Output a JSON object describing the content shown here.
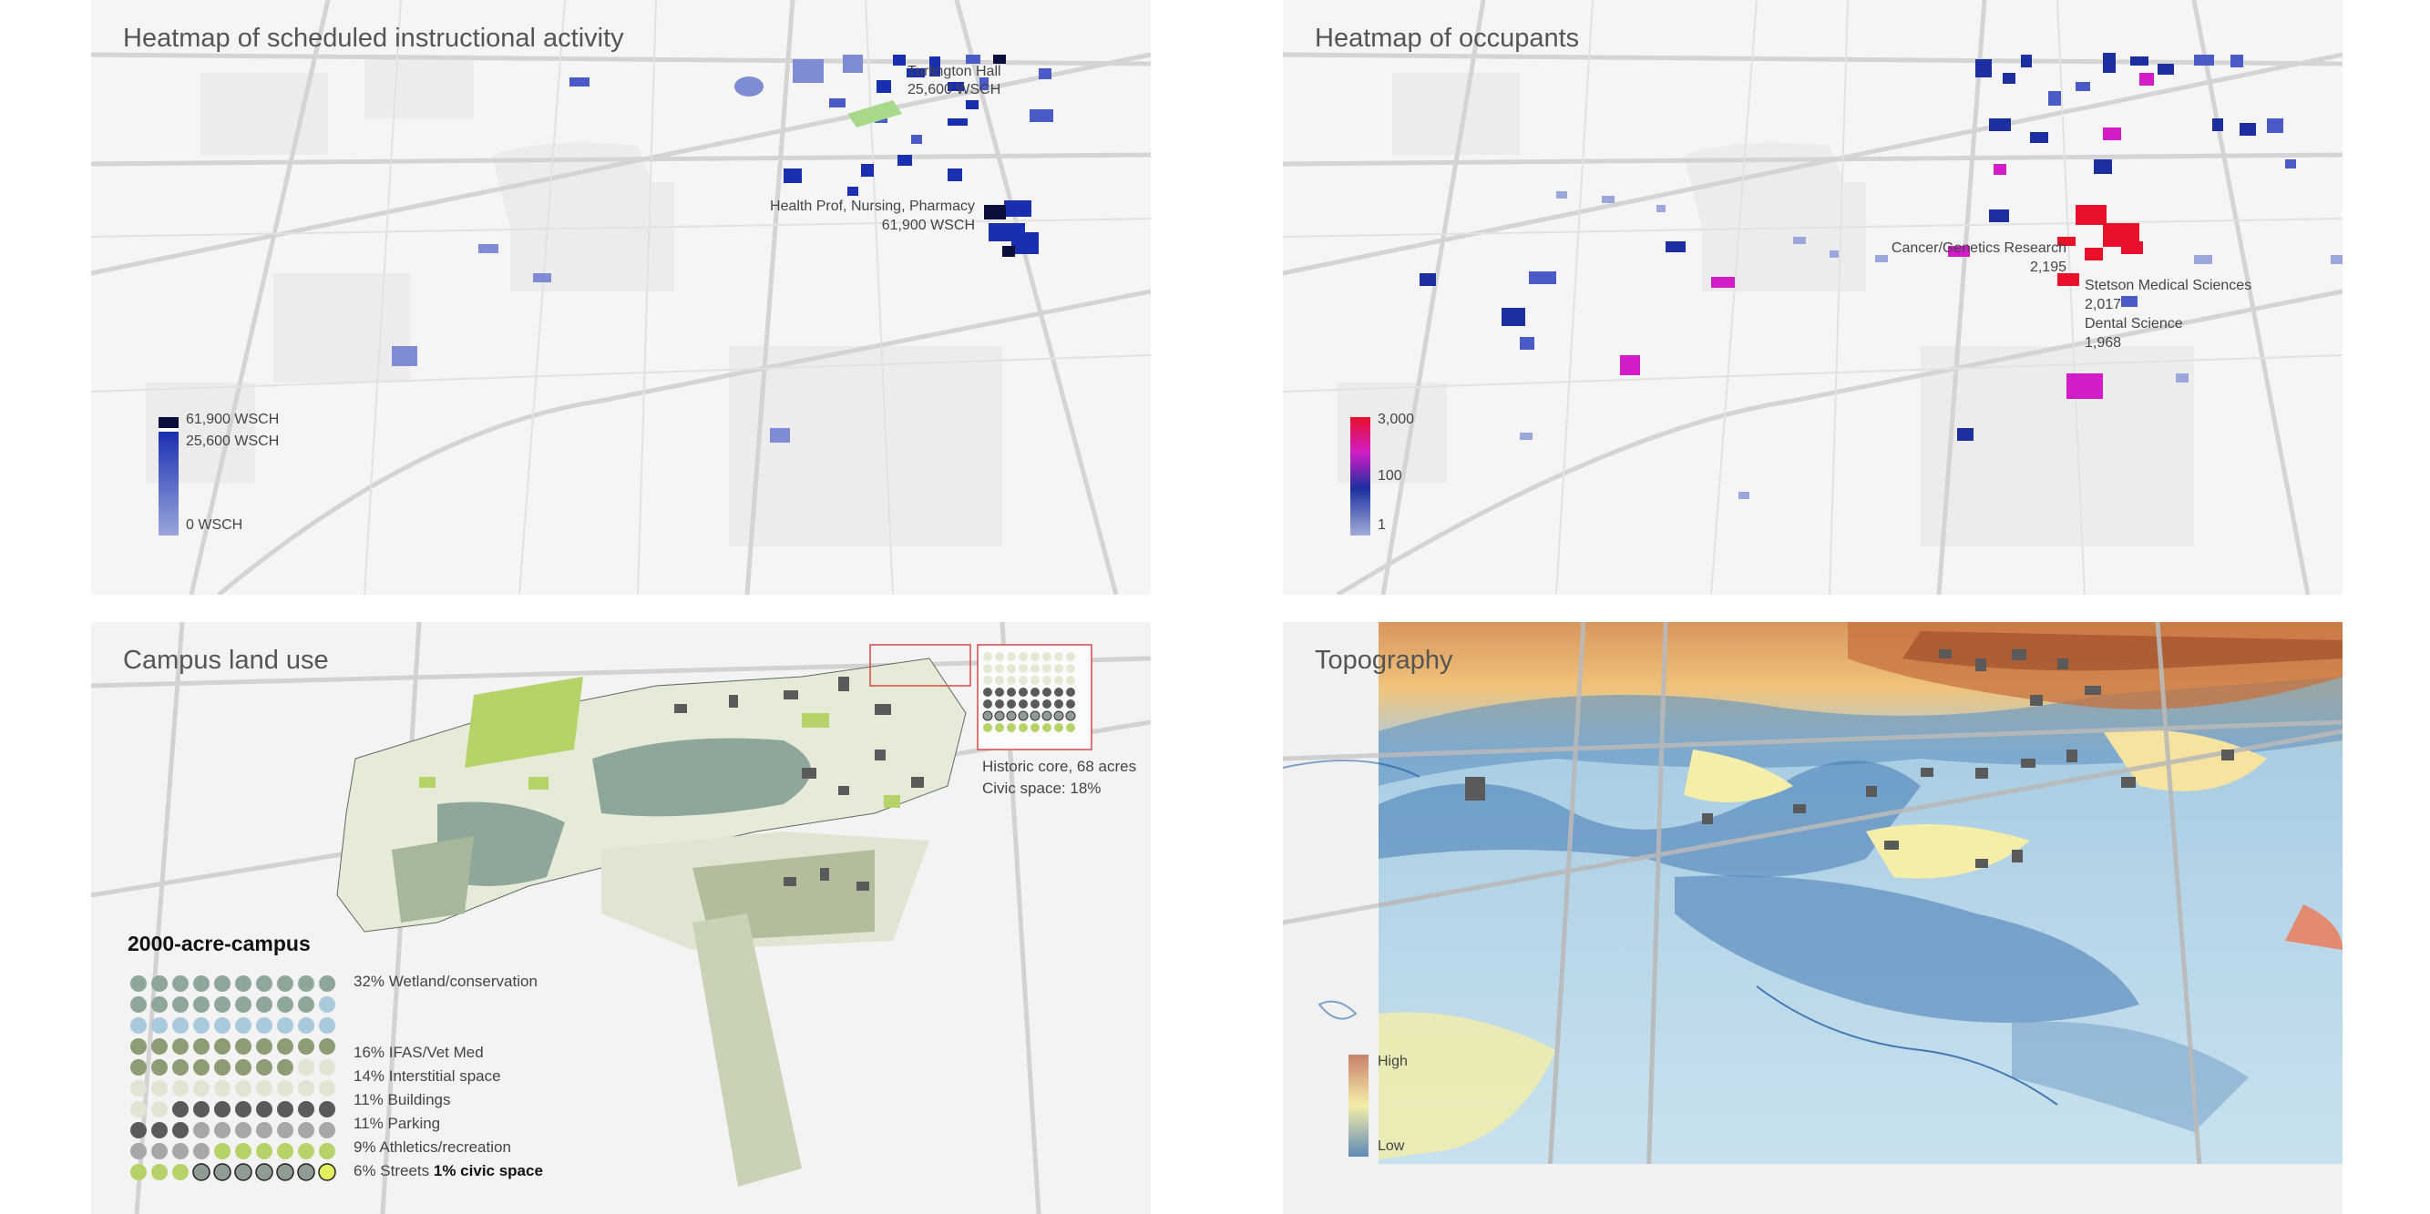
{
  "panels": {
    "instruction": {
      "title": "Heatmap of scheduled instructional activity",
      "callouts": [
        {
          "name": "Turlington Hall",
          "value": "25,600 WSCH"
        },
        {
          "name": "Health Prof, Nursing, Pharmacy",
          "value": "61,900 WSCH"
        }
      ],
      "legend": {
        "max": "61,900 WSCH",
        "mid": "25,600 WSCH",
        "min": "0 WSCH",
        "colors": {
          "top": "#0a0f3c",
          "mid": "#1a2fb0",
          "low": "#9aa6dc"
        }
      }
    },
    "occupants": {
      "title": "Heatmap of occupants",
      "callouts": [
        {
          "name": "Cancer/Genetics Research",
          "value": "2,195"
        },
        {
          "name": "Stetson Medical Sciences",
          "value": "2,017"
        },
        {
          "name": "Dental Science",
          "value": "1,968"
        }
      ],
      "legend": {
        "max": "3,000",
        "mid": "100",
        "min": "1",
        "colors": {
          "top": "#e8102a",
          "upper": "#d21cc8",
          "mid": "#1d2fa0",
          "low": "#a3acd8"
        }
      }
    },
    "land_use": {
      "title": "Campus land use",
      "historic_core": "Historic core, 68 acres",
      "civic_space": "Civic space: 18%",
      "campus_label": "2000-acre-campus",
      "categories": [
        {
          "label": "32% Wetland/conservation",
          "color": "#8fa79a"
        },
        {
          "label": "16% IFAS/Vet Med",
          "color": "#8c9c74"
        },
        {
          "label": "14% Interstitial space",
          "color": "#dfe5d0"
        },
        {
          "label": "11% Buildings",
          "color": "#5a5a5a"
        },
        {
          "label": "11% Parking",
          "color": "#a7a7a7"
        },
        {
          "label": "9% Athletics/recreation",
          "color": "#b6d36a"
        },
        {
          "label": "6% Streets",
          "color": "#8f9c94",
          "extra": "1% civic space"
        }
      ]
    },
    "topography": {
      "title": "Topography",
      "legend": {
        "high": "High",
        "low": "Low",
        "colors": {
          "high": "#c9806a",
          "mid": "#f4eea8",
          "low": "#5f89b8"
        }
      }
    }
  }
}
